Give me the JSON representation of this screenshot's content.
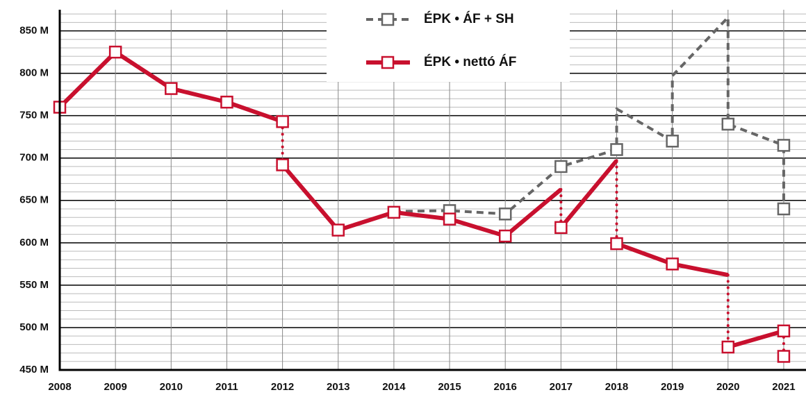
{
  "chart_data": {
    "type": "line",
    "xticks": [
      2008,
      2009,
      2010,
      2011,
      2012,
      2013,
      2014,
      2015,
      2016,
      2017,
      2018,
      2019,
      2020,
      2021
    ],
    "xlim": [
      2008,
      2021.4
    ],
    "ylim": [
      450,
      875
    ],
    "yticks": [
      {
        "value": 450,
        "label": "450 M"
      },
      {
        "value": 500,
        "label": "500 M"
      },
      {
        "value": 550,
        "label": "550 M"
      },
      {
        "value": 600,
        "label": "600 M"
      },
      {
        "value": 650,
        "label": "650 M"
      },
      {
        "value": 700,
        "label": "700 M"
      },
      {
        "value": 750,
        "label": "750 M"
      },
      {
        "value": 800,
        "label": "800 M"
      },
      {
        "value": 850,
        "label": "850 M"
      }
    ],
    "y_minor_ticks": [
      460,
      470,
      480,
      490,
      510,
      520,
      530,
      540,
      560,
      570,
      580,
      590,
      610,
      620,
      630,
      640,
      660,
      670,
      680,
      690,
      710,
      720,
      730,
      740,
      760,
      770,
      780,
      790,
      810,
      820,
      830,
      840,
      860,
      870
    ],
    "grid": true,
    "legend": "top",
    "series": [
      {
        "name": "ÉPK • ÁF + SH",
        "color": "#666666",
        "line_style": "dashed",
        "x": [
          2014,
          2015,
          2016,
          2017,
          2018,
          2018,
          2019,
          2019,
          2020,
          2020,
          2021,
          2021
        ],
        "values": [
          637,
          638,
          634,
          690,
          710,
          758,
          720,
          797,
          866,
          740,
          715,
          640
        ],
        "markers": [
          false,
          true,
          true,
          true,
          true,
          false,
          true,
          false,
          false,
          true,
          true,
          true
        ]
      },
      {
        "name": "ÉPK • nettó ÁF",
        "color": "#c8102e",
        "line_style": "solid",
        "x": [
          2008,
          2009,
          2010,
          2011,
          2012,
          2012,
          2013,
          2014,
          2015,
          2016,
          2017,
          2017,
          2018,
          2018,
          2019,
          2020,
          2020,
          2021,
          2021
        ],
        "values": [
          760,
          825,
          782,
          766,
          743,
          692,
          615,
          636,
          628,
          608,
          663,
          618,
          697,
          599,
          575,
          562,
          477,
          496,
          466
        ],
        "markers": [
          true,
          true,
          true,
          true,
          true,
          true,
          true,
          true,
          true,
          true,
          false,
          true,
          false,
          true,
          true,
          false,
          true,
          true,
          true
        ]
      }
    ]
  }
}
